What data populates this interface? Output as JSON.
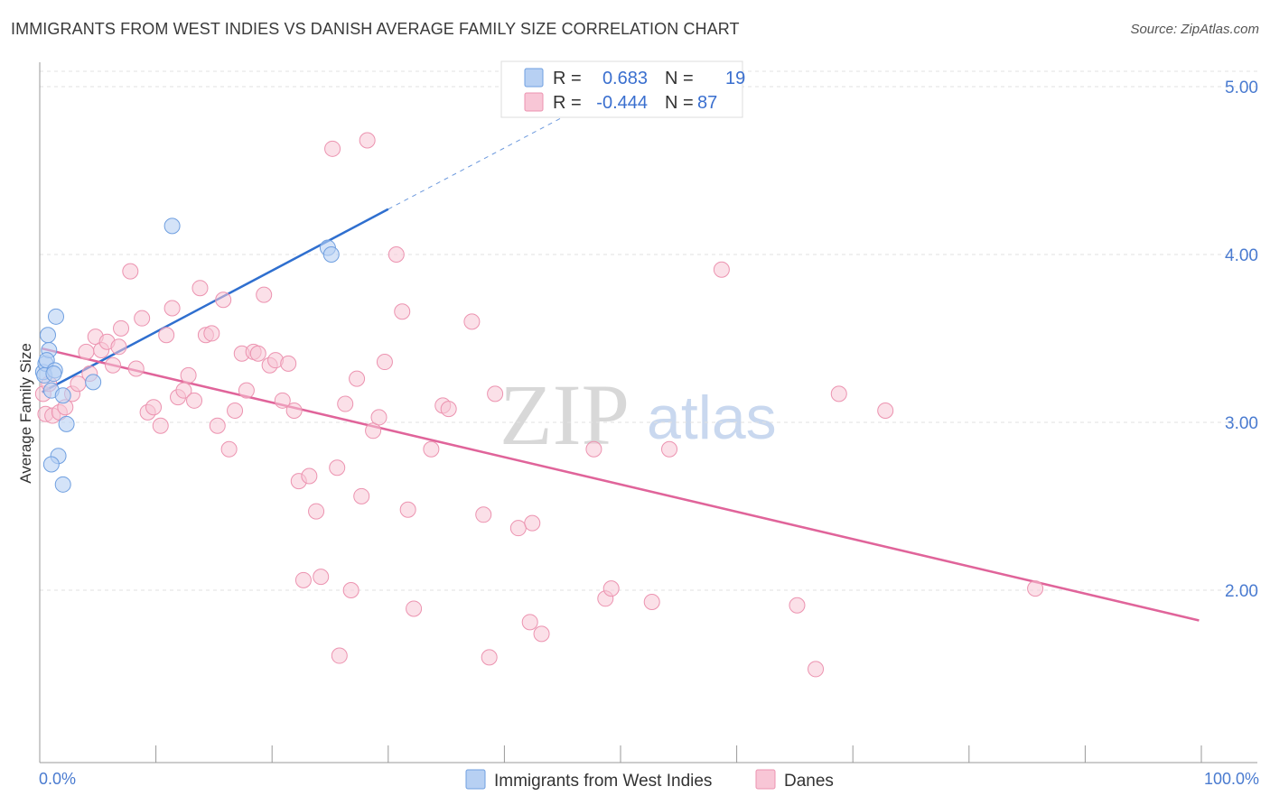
{
  "header": {
    "title": "IMMIGRANTS FROM WEST INDIES VS DANISH AVERAGE FAMILY SIZE CORRELATION CHART",
    "source": "Source: ZipAtlas.com"
  },
  "watermark": {
    "zip": "ZIP",
    "atlas": "atlas"
  },
  "colors": {
    "blue_fill": "#b7d0f3",
    "blue_stroke": "#6f9fe0",
    "blue_line": "#2f6fcf",
    "pink_fill": "#f8c6d6",
    "pink_stroke": "#ec93b0",
    "pink_line": "#e0649a",
    "grid": "#e2e2e2",
    "tick_label": "#4a7bd0"
  },
  "legend": {
    "rows": [
      {
        "r_label": "R =",
        "r_value": "0.683",
        "n_label": "N =",
        "n_value": "19",
        "color": "blue"
      },
      {
        "r_label": "R =",
        "r_value": "-0.444",
        "n_label": "N =",
        "n_value": "87",
        "color": "pink"
      }
    ]
  },
  "bottom_legend": {
    "items": [
      {
        "label": "Immigrants from West Indies",
        "color": "blue"
      },
      {
        "label": "Danes",
        "color": "pink"
      }
    ]
  },
  "chart_data": {
    "type": "scatter",
    "title": "IMMIGRANTS FROM WEST INDIES VS DANISH AVERAGE FAMILY SIZE CORRELATION CHART",
    "xlabel": "",
    "ylabel": "Average Family Size",
    "xlim": [
      0,
      100
    ],
    "ylim": [
      1.0,
      5.15
    ],
    "x_tick_labels": [
      "0.0%",
      "100.0%"
    ],
    "y_ticks": [
      2.0,
      3.0,
      4.0,
      5.0
    ],
    "y_tick_labels": [
      "2.00",
      "3.00",
      "4.00",
      "5.00"
    ],
    "grid": true,
    "legend_position": "top-center",
    "series": [
      {
        "name": "Immigrants from West Indies",
        "color": "blue",
        "R": 0.683,
        "N": 19,
        "trend": {
          "x0": 0.2,
          "y0": 3.18,
          "x1": 30.0,
          "y1": 4.27,
          "dash_to_x": 47.0,
          "dash_to_y": 4.89
        },
        "points": [
          [
            0.3,
            3.3
          ],
          [
            0.5,
            3.35
          ],
          [
            0.4,
            3.28
          ],
          [
            0.7,
            3.52
          ],
          [
            0.8,
            3.43
          ],
          [
            0.6,
            3.37
          ],
          [
            1.0,
            3.19
          ],
          [
            1.4,
            3.63
          ],
          [
            1.3,
            3.31
          ],
          [
            1.2,
            3.29
          ],
          [
            2.0,
            3.16
          ],
          [
            2.3,
            2.99
          ],
          [
            1.6,
            2.8
          ],
          [
            1.0,
            2.75
          ],
          [
            2.0,
            2.63
          ],
          [
            4.6,
            3.24
          ],
          [
            11.4,
            4.17
          ],
          [
            24.8,
            4.04
          ],
          [
            25.1,
            4.0
          ]
        ]
      },
      {
        "name": "Danes",
        "color": "pink",
        "R": -0.444,
        "N": 87,
        "trend": {
          "x0": 0.2,
          "y0": 3.44,
          "x1": 99.8,
          "y1": 1.82
        },
        "points": [
          [
            0.3,
            3.17
          ],
          [
            0.5,
            3.05
          ],
          [
            0.8,
            3.23
          ],
          [
            1.1,
            3.04
          ],
          [
            1.7,
            3.06
          ],
          [
            2.2,
            3.09
          ],
          [
            2.8,
            3.17
          ],
          [
            3.3,
            3.23
          ],
          [
            4.0,
            3.42
          ],
          [
            4.3,
            3.29
          ],
          [
            4.8,
            3.51
          ],
          [
            5.3,
            3.43
          ],
          [
            5.8,
            3.48
          ],
          [
            6.3,
            3.34
          ],
          [
            6.8,
            3.45
          ],
          [
            7.0,
            3.56
          ],
          [
            7.8,
            3.9
          ],
          [
            8.3,
            3.32
          ],
          [
            8.8,
            3.62
          ],
          [
            9.3,
            3.06
          ],
          [
            9.8,
            3.09
          ],
          [
            10.4,
            2.98
          ],
          [
            10.9,
            3.52
          ],
          [
            11.4,
            3.68
          ],
          [
            11.9,
            3.15
          ],
          [
            12.4,
            3.19
          ],
          [
            12.8,
            3.28
          ],
          [
            13.3,
            3.13
          ],
          [
            13.8,
            3.8
          ],
          [
            14.3,
            3.52
          ],
          [
            14.8,
            3.53
          ],
          [
            15.3,
            2.98
          ],
          [
            15.8,
            3.73
          ],
          [
            16.3,
            2.84
          ],
          [
            16.8,
            3.07
          ],
          [
            17.4,
            3.41
          ],
          [
            17.8,
            3.19
          ],
          [
            18.4,
            3.42
          ],
          [
            18.8,
            3.41
          ],
          [
            19.3,
            3.76
          ],
          [
            19.8,
            3.34
          ],
          [
            20.3,
            3.37
          ],
          [
            20.9,
            3.13
          ],
          [
            21.4,
            3.35
          ],
          [
            21.9,
            3.07
          ],
          [
            22.3,
            2.65
          ],
          [
            22.7,
            2.06
          ],
          [
            23.2,
            2.68
          ],
          [
            23.8,
            2.47
          ],
          [
            24.2,
            2.08
          ],
          [
            25.2,
            4.63
          ],
          [
            25.6,
            2.73
          ],
          [
            25.8,
            1.61
          ],
          [
            26.3,
            3.11
          ],
          [
            26.8,
            2.0
          ],
          [
            27.3,
            3.26
          ],
          [
            27.7,
            2.56
          ],
          [
            28.2,
            4.68
          ],
          [
            28.7,
            2.95
          ],
          [
            29.2,
            3.03
          ],
          [
            29.7,
            3.36
          ],
          [
            30.7,
            4.0
          ],
          [
            31.2,
            3.66
          ],
          [
            31.7,
            2.48
          ],
          [
            32.2,
            1.89
          ],
          [
            33.7,
            2.84
          ],
          [
            34.7,
            3.1
          ],
          [
            35.2,
            3.08
          ],
          [
            37.2,
            3.6
          ],
          [
            38.2,
            2.45
          ],
          [
            38.7,
            1.6
          ],
          [
            39.2,
            3.17
          ],
          [
            41.2,
            2.37
          ],
          [
            42.2,
            1.81
          ],
          [
            42.4,
            2.4
          ],
          [
            43.2,
            1.74
          ],
          [
            47.7,
            2.84
          ],
          [
            48.7,
            1.95
          ],
          [
            49.2,
            2.01
          ],
          [
            52.7,
            1.93
          ],
          [
            54.2,
            2.84
          ],
          [
            58.7,
            3.91
          ],
          [
            65.2,
            1.91
          ],
          [
            66.8,
            1.53
          ],
          [
            68.8,
            3.17
          ],
          [
            72.8,
            3.07
          ],
          [
            85.7,
            2.01
          ]
        ]
      }
    ]
  }
}
